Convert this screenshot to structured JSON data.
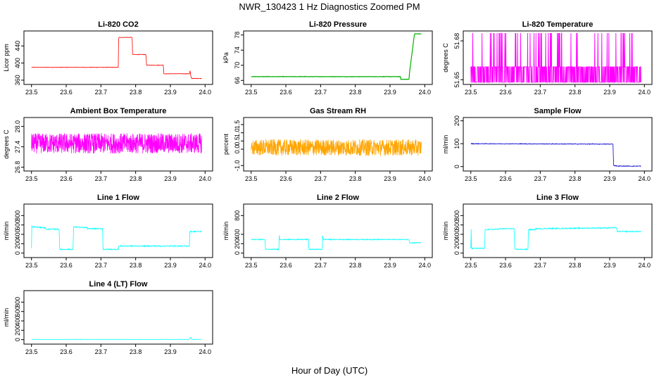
{
  "figure": {
    "title": "NWR_130423  1 Hz Diagnostics Zoomed PM",
    "xlabel": "Hour of Day (UTC)"
  },
  "chart_data": [
    {
      "type": "line",
      "title": "Li-820 CO2",
      "ylabel": "Licor ppm",
      "color": "#ff0000",
      "xlim": [
        23.5,
        24.0
      ],
      "xticks": [
        "23.5",
        "23.6",
        "23.7",
        "23.8",
        "23.9",
        "24.0"
      ],
      "ylim": [
        355,
        470
      ],
      "yticks": [
        "360",
        "400",
        "440"
      ],
      "noise": 0.6,
      "x": [
        23.5,
        23.7,
        23.75,
        23.751,
        23.79,
        23.791,
        23.83,
        23.831,
        23.88,
        23.881,
        23.956,
        23.957,
        23.958,
        23.959,
        23.96,
        23.961,
        23.99
      ],
      "y": [
        390,
        390,
        390,
        460,
        460,
        420,
        420,
        395,
        395,
        375,
        375,
        385,
        375,
        368,
        368,
        364,
        364
      ]
    },
    {
      "type": "line",
      "title": "Li-820 Pressure",
      "ylabel": "kPa",
      "color": "#00b000",
      "xlim": [
        23.5,
        24.0
      ],
      "xticks": [
        "23.5",
        "23.6",
        "23.7",
        "23.8",
        "23.9",
        "24.0"
      ],
      "ylim": [
        65.5,
        78.5
      ],
      "yticks": [
        "66",
        "70",
        "74",
        "78"
      ],
      "noise": 0.05,
      "x": [
        23.5,
        23.93,
        23.931,
        23.955,
        23.956,
        23.97,
        23.971,
        23.99
      ],
      "y": [
        67,
        67,
        66.3,
        66.3,
        68,
        78,
        78.3,
        78.3
      ]
    },
    {
      "type": "line",
      "title": "Li-820 Temperature",
      "ylabel": "degrees C",
      "color": "#ff00ff",
      "xlim": [
        23.5,
        24.0
      ],
      "xticks": [
        "23.5",
        "23.6",
        "23.7",
        "23.8",
        "23.9",
        "24.0"
      ],
      "ylim": [
        51.648,
        51.686
      ],
      "yticks": [
        "51.65",
        "51.68"
      ],
      "levels": [
        51.648,
        51.66
      ],
      "spikes": 51.686,
      "x": [
        23.5,
        23.99
      ],
      "y": [
        51.66,
        51.66
      ]
    },
    {
      "type": "line",
      "title": "Ambient Box Temperature",
      "ylabel": "degrees C",
      "color": "#ff00ff",
      "xlim": [
        23.5,
        24.0
      ],
      "xticks": [
        "23.5",
        "23.6",
        "23.7",
        "23.8",
        "23.9",
        "24.0"
      ],
      "ylim": [
        26.75,
        28.2
      ],
      "yticks": [
        "26.8",
        "27.4",
        "28.0"
      ],
      "noise": 0.3,
      "x": [
        23.5,
        23.99
      ],
      "y": [
        27.5,
        27.5
      ]
    },
    {
      "type": "line",
      "title": "Gas Stream RH",
      "ylabel": "percent",
      "color": "#ffa500",
      "xlim": [
        23.5,
        24.0
      ],
      "xticks": [
        "23.5",
        "23.6",
        "23.7",
        "23.8",
        "23.9",
        "24.0"
      ],
      "ylim": [
        -1.2,
        1.8
      ],
      "yticks": [
        "-1.0",
        "0.0",
        "0.5",
        "1.0",
        "1.5"
      ],
      "noise": 0.5,
      "x": [
        23.5,
        23.99
      ],
      "y": [
        0.1,
        0.1
      ]
    },
    {
      "type": "line",
      "title": "Sample Flow",
      "ylabel": "ml/min",
      "color": "#0000cd",
      "xlim": [
        23.5,
        24.0
      ],
      "xticks": [
        "23.5",
        "23.6",
        "23.7",
        "23.8",
        "23.9",
        "24.0"
      ],
      "ylim": [
        -10,
        205
      ],
      "yticks": [
        "0",
        "100",
        "200"
      ],
      "noise": 1.5,
      "x": [
        23.5,
        23.91,
        23.911,
        23.925,
        23.99
      ],
      "y": [
        100,
        98,
        5,
        2,
        2
      ]
    },
    {
      "type": "line",
      "title": "Line 1 Flow",
      "ylabel": "ml/min",
      "color": "#00ffff",
      "xlim": [
        23.5,
        24.0
      ],
      "xticks": [
        "23.5",
        "23.6",
        "23.7",
        "23.8",
        "23.9",
        "24.0"
      ],
      "ylim": [
        -50,
        1000
      ],
      "yticks": [
        "0",
        "200",
        "400",
        "600",
        "800"
      ],
      "noise": 12,
      "x": [
        23.5,
        23.501,
        23.502,
        23.54,
        23.541,
        23.58,
        23.581,
        23.62,
        23.621,
        23.66,
        23.661,
        23.705,
        23.706,
        23.75,
        23.751,
        23.955,
        23.956,
        23.99
      ],
      "y": [
        100,
        580,
        560,
        540,
        510,
        510,
        80,
        80,
        560,
        540,
        520,
        520,
        80,
        80,
        150,
        150,
        460,
        460
      ]
    },
    {
      "type": "line",
      "title": "Line 2 Flow",
      "ylabel": "ml/min",
      "color": "#00ffff",
      "xlim": [
        23.5,
        24.0
      ],
      "xticks": [
        "23.5",
        "23.6",
        "23.7",
        "23.8",
        "23.9",
        "24.0"
      ],
      "ylim": [
        -50,
        1000
      ],
      "yticks": [
        "0",
        "200",
        "400",
        "800"
      ],
      "noise": 10,
      "x": [
        23.5,
        23.54,
        23.541,
        23.58,
        23.581,
        23.582,
        23.665,
        23.666,
        23.705,
        23.706,
        23.707,
        23.955,
        23.956,
        23.99
      ],
      "y": [
        290,
        290,
        80,
        80,
        420,
        290,
        290,
        80,
        80,
        440,
        290,
        290,
        220,
        220
      ]
    },
    {
      "type": "line",
      "title": "Line 3 Flow",
      "ylabel": "ml/min",
      "color": "#00ffff",
      "xlim": [
        23.5,
        24.0
      ],
      "xticks": [
        "23.5",
        "23.6",
        "23.7",
        "23.8",
        "23.9",
        "24.0"
      ],
      "ylim": [
        -50,
        1000
      ],
      "yticks": [
        "0",
        "200",
        "400",
        "600",
        "800"
      ],
      "noise": 12,
      "x": [
        23.5,
        23.501,
        23.502,
        23.54,
        23.541,
        23.58,
        23.581,
        23.625,
        23.626,
        23.665,
        23.666,
        23.667,
        23.685,
        23.686,
        23.92,
        23.921,
        23.99
      ],
      "y": [
        100,
        520,
        100,
        100,
        500,
        510,
        520,
        520,
        80,
        80,
        540,
        500,
        500,
        520,
        540,
        460,
        460
      ]
    },
    {
      "type": "line",
      "title": "Line 4 (LT) Flow",
      "ylabel": "ml/min",
      "color": "#00ffff",
      "xlim": [
        23.5,
        24.0
      ],
      "xticks": [
        "23.5",
        "23.6",
        "23.7",
        "23.8",
        "23.9",
        "24.0"
      ],
      "ylim": [
        -50,
        1000
      ],
      "yticks": [
        "0",
        "200",
        "400",
        "600",
        "800"
      ],
      "noise": 3,
      "x": [
        23.5,
        23.955,
        23.956,
        23.96,
        23.961,
        23.99
      ],
      "y": [
        5,
        5,
        40,
        40,
        5,
        5
      ]
    }
  ]
}
